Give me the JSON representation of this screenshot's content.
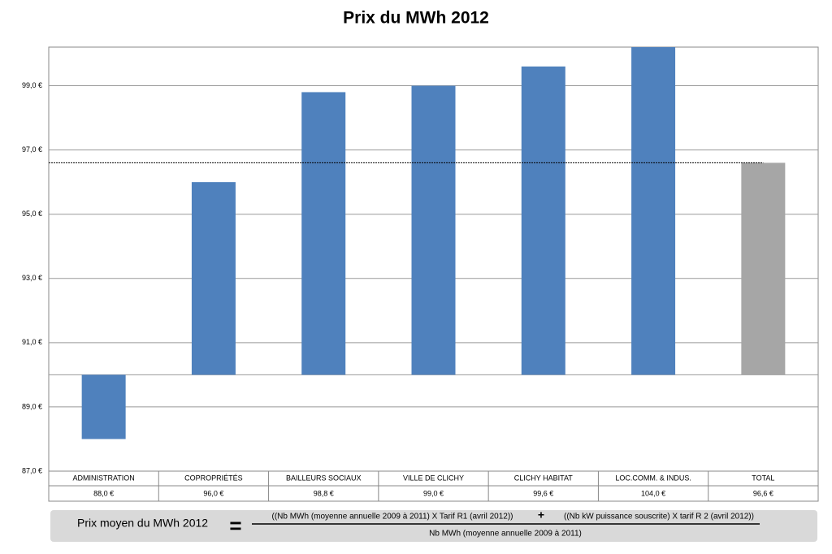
{
  "chart_data": {
    "type": "bar",
    "title": "Prix du MWh 2012",
    "categories": [
      "ADMINISTRATION",
      "COPROPRIÉTÉS",
      "BAILLEURS SOCIAUX",
      "VILLE DE CLICHY",
      "CLICHY HABITAT",
      "LOC.COMM. & INDUS.",
      "TOTAL"
    ],
    "values": [
      88.0,
      96.0,
      98.8,
      99.0,
      99.6,
      104.0,
      96.6
    ],
    "value_labels": [
      "88,0 €",
      "96,0 €",
      "98,8 €",
      "99,0 €",
      "99,6 €",
      "104,0 €",
      "96,6 €"
    ],
    "colors": [
      "#4f81bd",
      "#4f81bd",
      "#4f81bd",
      "#4f81bd",
      "#4f81bd",
      "#4f81bd",
      "#a6a6a6"
    ],
    "bar_base": 90,
    "reference_line": 96.6,
    "ylim": [
      87,
      100
    ],
    "yticks": [
      {
        "value": 87,
        "label": "87,0 €"
      },
      {
        "value": 89,
        "label": "89,0 €"
      },
      {
        "value": 91,
        "label": "91,0 €"
      },
      {
        "value": 93,
        "label": "93,0 €"
      },
      {
        "value": 95,
        "label": "95,0 €"
      },
      {
        "value": 97,
        "label": "97,0 €"
      },
      {
        "value": 99,
        "label": "99,0 €"
      }
    ],
    "grid": true,
    "formula": {
      "label": "Prix moyen du MWh 2012",
      "equals": "=",
      "numerator": "((Nb MWh (moyenne annuelle 2009 à 2011)  X Tarif R1 (avril 2012))",
      "plus": "+",
      "numerator2": "((Nb kW puissance souscrite) X tarif R 2 (avril 2012))",
      "denominator": "Nb MWh (moyenne annuelle 2009 à 2011)"
    }
  }
}
